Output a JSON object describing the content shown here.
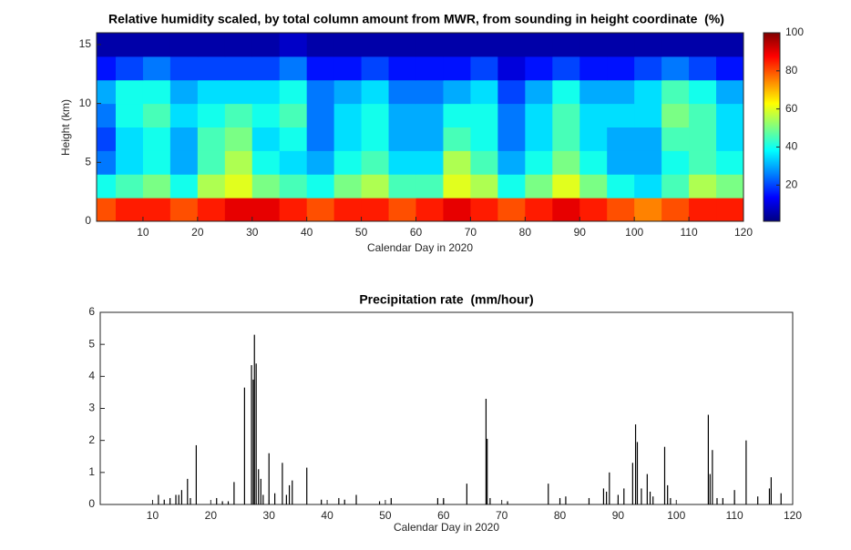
{
  "chart_data": [
    {
      "type": "heatmap",
      "title": "Relative humidity scaled, by total column amount from MWR, from sounding in height coordinate  (%)",
      "xlabel": "Calendar Day in 2020",
      "ylabel": "Height (km)",
      "colormap": "jet",
      "x_edges": [
        0,
        5,
        10,
        15,
        20,
        25,
        30,
        35,
        40,
        45,
        50,
        55,
        60,
        65,
        70,
        75,
        80,
        85,
        90,
        95,
        100,
        105,
        110,
        115,
        120
      ],
      "y_edges": [
        0,
        2,
        4,
        6,
        8,
        10,
        12,
        14,
        16
      ],
      "z": [
        [
          80,
          85,
          85,
          80,
          85,
          90,
          90,
          85,
          80,
          85,
          85,
          80,
          85,
          90,
          85,
          80,
          85,
          90,
          85,
          80,
          75,
          80,
          85,
          85
        ],
        [
          40,
          45,
          50,
          40,
          55,
          60,
          50,
          45,
          40,
          50,
          55,
          45,
          45,
          60,
          55,
          40,
          50,
          60,
          50,
          40,
          35,
          45,
          55,
          50
        ],
        [
          25,
          35,
          40,
          30,
          45,
          55,
          40,
          35,
          30,
          40,
          45,
          35,
          35,
          55,
          45,
          30,
          40,
          50,
          40,
          30,
          30,
          40,
          45,
          40
        ],
        [
          20,
          35,
          40,
          30,
          45,
          50,
          35,
          40,
          25,
          35,
          40,
          30,
          30,
          45,
          40,
          25,
          35,
          45,
          35,
          30,
          30,
          45,
          45,
          35
        ],
        [
          25,
          40,
          45,
          35,
          40,
          45,
          40,
          45,
          25,
          35,
          40,
          30,
          30,
          40,
          40,
          25,
          35,
          45,
          35,
          35,
          35,
          50,
          45,
          35
        ],
        [
          30,
          40,
          40,
          30,
          35,
          35,
          35,
          40,
          25,
          30,
          35,
          25,
          25,
          30,
          35,
          20,
          30,
          40,
          30,
          30,
          35,
          45,
          40,
          30
        ],
        [
          15,
          20,
          25,
          20,
          20,
          20,
          20,
          25,
          15,
          15,
          20,
          15,
          15,
          15,
          20,
          10,
          15,
          20,
          15,
          15,
          20,
          25,
          20,
          15
        ],
        [
          5,
          5,
          5,
          5,
          5,
          5,
          5,
          8,
          5,
          5,
          5,
          5,
          5,
          5,
          5,
          5,
          5,
          5,
          5,
          5,
          5,
          5,
          5,
          5
        ]
      ],
      "xlim": [
        1.5,
        120
      ],
      "ylim": [
        0,
        16
      ],
      "xticks": [
        10,
        20,
        30,
        40,
        50,
        60,
        70,
        80,
        90,
        100,
        110,
        120
      ],
      "yticks": [
        0,
        5,
        10,
        15
      ],
      "clim": [
        1,
        100
      ],
      "cticks": [
        20,
        40,
        60,
        80,
        100
      ]
    },
    {
      "type": "spike",
      "title": "Precipitation rate  (mm/hour)",
      "xlabel": "Calendar Day in 2020",
      "color": "#000000",
      "x": [
        11,
        12,
        13,
        14,
        14.5,
        15,
        16,
        16.5,
        17.5,
        21,
        22,
        23,
        24,
        25.8,
        27,
        27.3,
        27.5,
        27.8,
        28.2,
        28.6,
        29,
        30,
        31,
        32.3,
        33,
        33.5,
        34,
        36.5,
        39,
        42,
        43,
        45,
        49,
        51,
        59,
        60,
        64,
        67.3,
        67.5,
        68,
        71,
        78,
        80,
        81,
        85,
        87.5,
        88,
        88.5,
        90,
        91,
        92.5,
        93,
        93.3,
        94,
        95,
        95.5,
        96,
        98,
        98.5,
        99,
        105.5,
        105.8,
        106.2,
        107,
        108,
        110,
        112,
        114,
        116,
        116.3,
        118
      ],
      "values": [
        0.3,
        0.15,
        0.2,
        0.3,
        0.3,
        0.45,
        0.8,
        0.2,
        1.85,
        0.2,
        0.1,
        0.1,
        0.7,
        3.65,
        4.35,
        3.9,
        5.3,
        4.4,
        1.1,
        0.8,
        0.3,
        1.6,
        0.35,
        1.3,
        0.3,
        0.6,
        0.75,
        1.15,
        0.15,
        0.2,
        0.15,
        0.3,
        0.1,
        0.2,
        0.2,
        0.2,
        0.65,
        3.3,
        2.05,
        0.2,
        0.1,
        0.65,
        0.2,
        0.25,
        0.2,
        0.5,
        0.4,
        1.0,
        0.3,
        0.5,
        1.3,
        2.5,
        1.95,
        0.5,
        0.95,
        0.4,
        0.25,
        1.8,
        0.6,
        0.2,
        2.8,
        0.95,
        1.7,
        0.2,
        0.2,
        0.45,
        2.0,
        0.25,
        0.5,
        0.85,
        0.35
      ],
      "xlim": [
        1,
        120
      ],
      "ylim": [
        0,
        6
      ],
      "xticks": [
        10,
        20,
        30,
        40,
        50,
        60,
        70,
        80,
        90,
        100,
        110,
        120
      ],
      "yticks": [
        0,
        1,
        2,
        3,
        4,
        5,
        6
      ]
    }
  ]
}
